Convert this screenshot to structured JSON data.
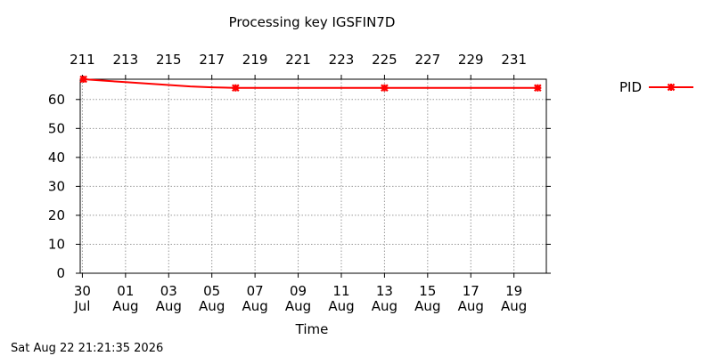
{
  "chart_data": {
    "type": "line",
    "title": "Processing key IGSFIN7D",
    "xlabel": "Time",
    "ylabel": "",
    "ylim": [
      0,
      67
    ],
    "yticks": [
      0,
      10,
      20,
      30,
      40,
      50,
      60
    ],
    "grid": true,
    "legend_position": "right",
    "x_bottom_ticks": [
      {
        "day": 0,
        "line1": "30",
        "line2": "Jul"
      },
      {
        "day": 2,
        "line1": "01",
        "line2": "Aug"
      },
      {
        "day": 4,
        "line1": "03",
        "line2": "Aug"
      },
      {
        "day": 6,
        "line1": "05",
        "line2": "Aug"
      },
      {
        "day": 8,
        "line1": "07",
        "line2": "Aug"
      },
      {
        "day": 10,
        "line1": "09",
        "line2": "Aug"
      },
      {
        "day": 12,
        "line1": "11",
        "line2": "Aug"
      },
      {
        "day": 14,
        "line1": "13",
        "line2": "Aug"
      },
      {
        "day": 16,
        "line1": "15",
        "line2": "Aug"
      },
      {
        "day": 18,
        "line1": "17",
        "line2": "Aug"
      },
      {
        "day": 20,
        "line1": "19",
        "line2": "Aug"
      }
    ],
    "x_top_ticks": [
      {
        "day": 0,
        "label": "211"
      },
      {
        "day": 2,
        "label": "213"
      },
      {
        "day": 4,
        "label": "215"
      },
      {
        "day": 6,
        "label": "217"
      },
      {
        "day": 8,
        "label": "219"
      },
      {
        "day": 10,
        "label": "221"
      },
      {
        "day": 12,
        "label": "223"
      },
      {
        "day": 14,
        "label": "225"
      },
      {
        "day": 16,
        "label": "227"
      },
      {
        "day": 18,
        "label": "229"
      },
      {
        "day": 20,
        "label": "231"
      }
    ],
    "xlim": [
      -0.1,
      21.5
    ],
    "series": [
      {
        "name": "PID",
        "color": "#ff0000",
        "x": [
          0.05,
          1,
          2,
          3,
          4,
          5,
          6,
          7.1,
          14,
          21.1
        ],
        "y": [
          67,
          66.5,
          66,
          65.5,
          65,
          64.5,
          64.2,
          64,
          64,
          64
        ],
        "markers": [
          0,
          7,
          8,
          9
        ]
      }
    ]
  },
  "footer": {
    "timestamp": "Sat Aug 22 21:21:35 2026"
  }
}
